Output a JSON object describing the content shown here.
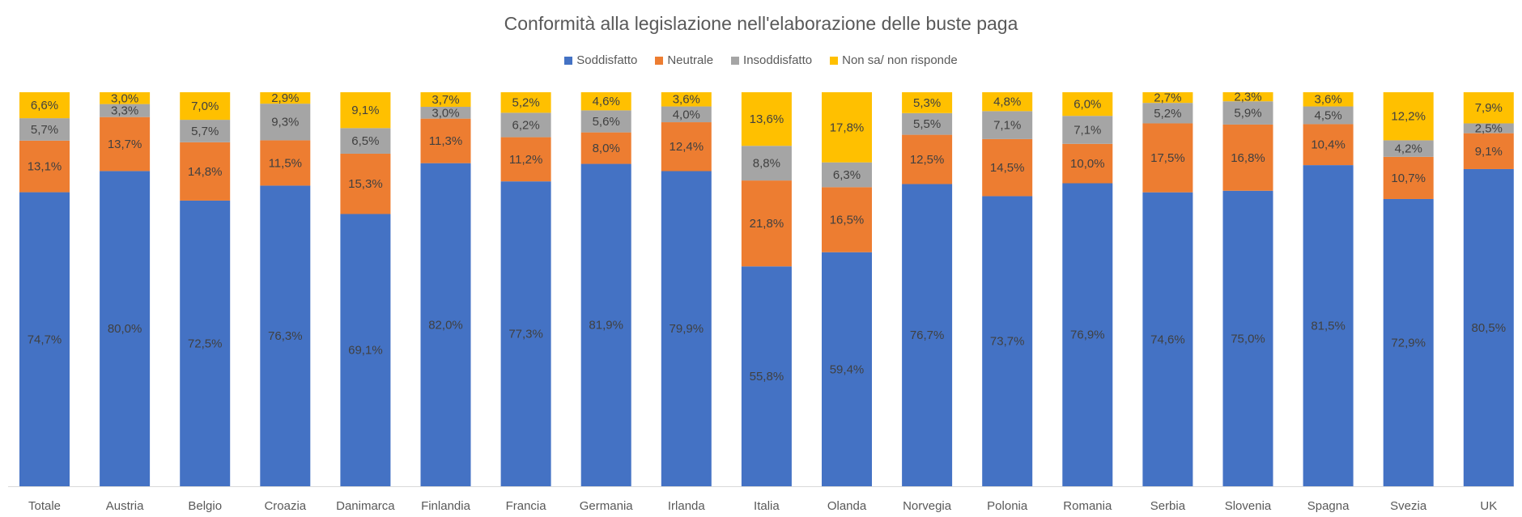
{
  "chart_data": {
    "type": "bar",
    "stacked": true,
    "percent_stacked": true,
    "title": "Conformità alla legislazione nell'elaborazione delle buste paga",
    "xlabel": "",
    "ylabel": "",
    "ylim": [
      0,
      100
    ],
    "grid": false,
    "legend_position": "top",
    "categories": [
      "Totale",
      "Austria",
      "Belgio",
      "Croazia",
      "Danimarca",
      "Finlandia",
      "Francia",
      "Germania",
      "Irlanda",
      "Italia",
      "Olanda",
      "Norvegia",
      "Polonia",
      "Romania",
      "Serbia",
      "Slovenia",
      "Spagna",
      "Svezia",
      "UK"
    ],
    "series": [
      {
        "name": "Soddisfatto",
        "color": "#4472C4",
        "values": [
          74.7,
          80.0,
          72.5,
          76.3,
          69.1,
          82.0,
          77.3,
          81.9,
          79.9,
          55.8,
          59.4,
          76.7,
          73.7,
          76.9,
          74.6,
          75.0,
          81.5,
          72.9,
          80.5
        ]
      },
      {
        "name": "Neutrale",
        "color": "#ED7D31",
        "values": [
          13.1,
          13.7,
          14.8,
          11.5,
          15.3,
          11.3,
          11.2,
          8.0,
          12.4,
          21.8,
          16.5,
          12.5,
          14.5,
          10.0,
          17.5,
          16.8,
          10.4,
          10.7,
          9.1
        ]
      },
      {
        "name": "Insoddisfatto",
        "color": "#A5A5A5",
        "values": [
          5.7,
          3.3,
          5.7,
          9.3,
          6.5,
          3.0,
          6.2,
          5.6,
          4.0,
          8.8,
          6.3,
          5.5,
          7.1,
          7.1,
          5.2,
          5.9,
          4.5,
          4.2,
          2.5
        ]
      },
      {
        "name": "Non sa/ non risponde",
        "color": "#FFC000",
        "values": [
          6.6,
          3.0,
          7.0,
          2.9,
          9.1,
          3.7,
          5.2,
          4.6,
          3.6,
          13.6,
          17.8,
          5.3,
          4.8,
          6.0,
          2.7,
          2.3,
          3.6,
          12.2,
          7.9
        ]
      }
    ],
    "value_format": "decimal-comma-percent"
  }
}
